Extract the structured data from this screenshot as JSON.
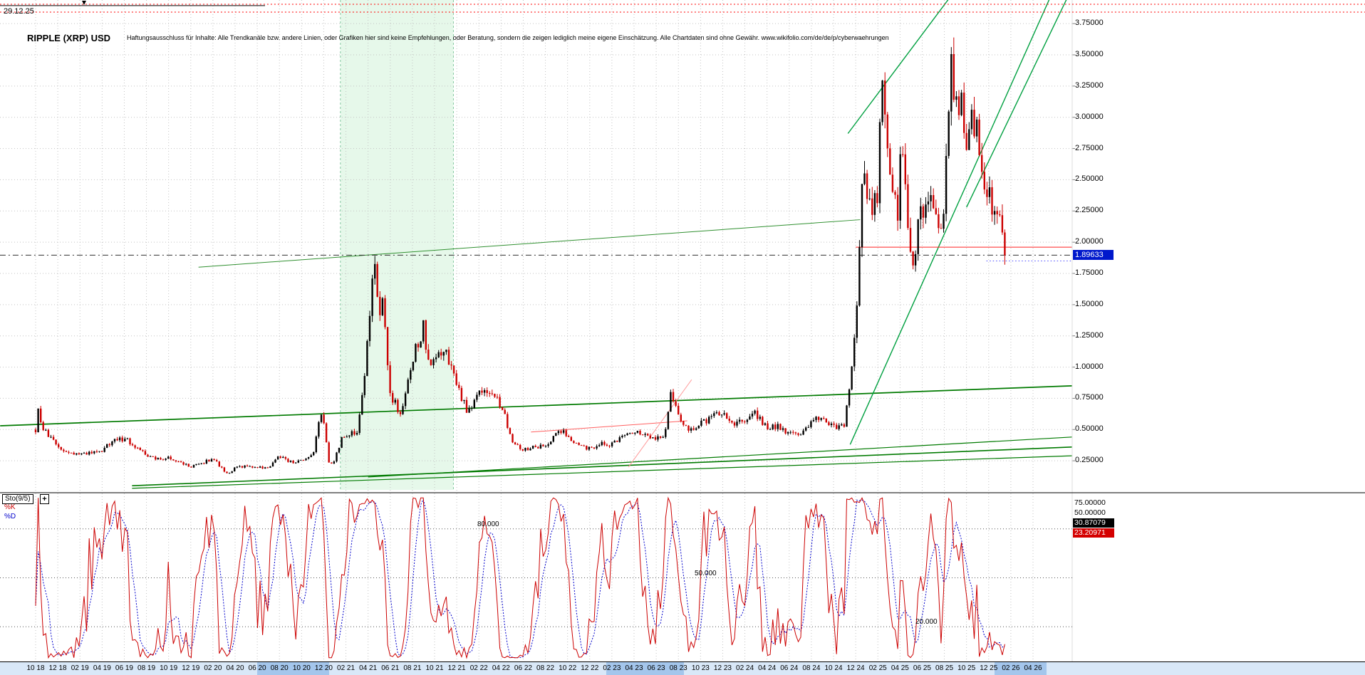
{
  "header": {
    "date_label": "29.12.25",
    "title": "RIPPLE (XRP) USD",
    "disclaimer": "Haftungsausschluss für Inhalte: Alle Trendkanäle bzw. andere Linien, oder Grafiken hier sind keine Empfehlungen, oder Beratung, sondern die zeigen lediglich meine eigene Einschätzung. Alle Chartdaten sind ohne Gewähr.   www.wikifolio.com/de/de/p/cyberwaehrungen"
  },
  "colors": {
    "up": "#000000",
    "down": "#cc0000",
    "k": "#cc0000",
    "d": "#0000cc",
    "grid": "#c3c3c3",
    "green": "#007a00",
    "band": "#d9e8f8",
    "band_highlight": "#a4c6ec",
    "tag_bg": "#0018cc",
    "k_box": "#000000",
    "d_box": "#d40000"
  },
  "chart_data": {
    "type": "candlestick",
    "title": "RIPPLE (XRP) USD",
    "interval": "weekly",
    "y_axis": {
      "unit": "USD",
      "tick_labels": [
        "3.75000",
        "3.50000",
        "3.25000",
        "3.00000",
        "2.75000",
        "2.50000",
        "2.25000",
        "2.00000",
        "1.75000",
        "1.50000",
        "1.25000",
        "1.00000",
        "0.75000",
        "0.50000",
        "0.25000"
      ],
      "tick_values": [
        3.75,
        3.5,
        3.25,
        3.0,
        2.75,
        2.5,
        2.25,
        2.0,
        1.75,
        1.5,
        1.25,
        1.0,
        0.75,
        0.5,
        0.25
      ]
    },
    "x_axis": {
      "start": "10/2018",
      "end": "04/2026",
      "tick_month_step": 2,
      "tick_labels": [
        "10 18",
        "12 18",
        "02 19",
        "04 19",
        "06 19",
        "08 19",
        "10 19",
        "12 19",
        "02 20",
        "04 20",
        "06 20",
        "08 20",
        "10 20",
        "12 20",
        "02 21",
        "04 21",
        "06 21",
        "08 21",
        "10 21",
        "12 21",
        "02 22",
        "04 22",
        "06 22",
        "08 22",
        "10 22",
        "12 22",
        "02 23",
        "04 23",
        "06 23",
        "08 23",
        "10 23",
        "12 23",
        "02 24",
        "04 24",
        "06 24",
        "08 24",
        "10 24",
        "12 24",
        "02 25",
        "04 25",
        "06 25",
        "08 25",
        "10 25",
        "12 25",
        "02 26",
        "04 26"
      ]
    },
    "last_price": 1.89633,
    "last_price_label": "1.89633",
    "price_path": [
      [
        0,
        0.5
      ],
      [
        0.25,
        0.65
      ],
      [
        0.6,
        0.53
      ],
      [
        1,
        0.46
      ],
      [
        2,
        0.36
      ],
      [
        3,
        0.31
      ],
      [
        4,
        0.3
      ],
      [
        5,
        0.31
      ],
      [
        6,
        0.33
      ],
      [
        7,
        0.41
      ],
      [
        8,
        0.43
      ],
      [
        9,
        0.37
      ],
      [
        10,
        0.29
      ],
      [
        11,
        0.26
      ],
      [
        12,
        0.28
      ],
      [
        13,
        0.24
      ],
      [
        14,
        0.2
      ],
      [
        15,
        0.23
      ],
      [
        16,
        0.27
      ],
      [
        17.3,
        0.14
      ],
      [
        18,
        0.19
      ],
      [
        19,
        0.21
      ],
      [
        20,
        0.2
      ],
      [
        21,
        0.19
      ],
      [
        22,
        0.29
      ],
      [
        23,
        0.24
      ],
      [
        24,
        0.25
      ],
      [
        25,
        0.29
      ],
      [
        25.7,
        0.62
      ],
      [
        26.1,
        0.5
      ],
      [
        26.5,
        0.22
      ],
      [
        27,
        0.26
      ],
      [
        27.6,
        0.42
      ],
      [
        28,
        0.45
      ],
      [
        29,
        0.48
      ],
      [
        29.7,
        0.95
      ],
      [
        30.5,
        1.86
      ],
      [
        31,
        1.38
      ],
      [
        31.3,
        1.55
      ],
      [
        31.8,
        0.92
      ],
      [
        32,
        0.78
      ],
      [
        33,
        0.62
      ],
      [
        34,
        1.05
      ],
      [
        35,
        1.32
      ],
      [
        35.5,
        0.98
      ],
      [
        36,
        1.05
      ],
      [
        37,
        1.14
      ],
      [
        38,
        0.86
      ],
      [
        39,
        0.64
      ],
      [
        40,
        0.78
      ],
      [
        41,
        0.82
      ],
      [
        42,
        0.7
      ],
      [
        43,
        0.42
      ],
      [
        44,
        0.34
      ],
      [
        45,
        0.36
      ],
      [
        46,
        0.37
      ],
      [
        47.3,
        0.5
      ],
      [
        48,
        0.46
      ],
      [
        49,
        0.37
      ],
      [
        50,
        0.35
      ],
      [
        51,
        0.39
      ],
      [
        52,
        0.38
      ],
      [
        53,
        0.44
      ],
      [
        54,
        0.5
      ],
      [
        55,
        0.46
      ],
      [
        56,
        0.44
      ],
      [
        56.8,
        0.47
      ],
      [
        57.3,
        0.82
      ],
      [
        57.7,
        0.7
      ],
      [
        58.3,
        0.52
      ],
      [
        59,
        0.51
      ],
      [
        60,
        0.54
      ],
      [
        61,
        0.61
      ],
      [
        62,
        0.62
      ],
      [
        63,
        0.56
      ],
      [
        64,
        0.55
      ],
      [
        65,
        0.63
      ],
      [
        66,
        0.52
      ],
      [
        67,
        0.53
      ],
      [
        68,
        0.47
      ],
      [
        69,
        0.44
      ],
      [
        70,
        0.57
      ],
      [
        71,
        0.58
      ],
      [
        72,
        0.53
      ],
      [
        73,
        0.52
      ],
      [
        73.8,
        1.15
      ],
      [
        74.2,
        1.55
      ],
      [
        74.7,
        2.72
      ],
      [
        75.1,
        2.35
      ],
      [
        75.5,
        2.15
      ],
      [
        76,
        2.45
      ],
      [
        76.4,
        3.3
      ],
      [
        76.7,
        3.05
      ],
      [
        77.2,
        2.55
      ],
      [
        77.8,
        2.08
      ],
      [
        78.1,
        2.88
      ],
      [
        78.5,
        2.35
      ],
      [
        79.3,
        1.72
      ],
      [
        79.6,
        2.12
      ],
      [
        80.2,
        2.3
      ],
      [
        80.6,
        2.42
      ],
      [
        81.2,
        2.12
      ],
      [
        81.7,
        2.18
      ],
      [
        82,
        2.35
      ],
      [
        82.6,
        3.52
      ],
      [
        83,
        3.05
      ],
      [
        83.5,
        3.12
      ],
      [
        84,
        2.88
      ],
      [
        84.5,
        3.02
      ],
      [
        85.1,
        2.92
      ],
      [
        85.4,
        2.42
      ],
      [
        86,
        2.48
      ],
      [
        86.6,
        2.18
      ],
      [
        87.1,
        2.12
      ],
      [
        87.4,
        1.98
      ],
      [
        87.6,
        1.9
      ]
    ],
    "shaded_region": {
      "from_month": 27.5,
      "to_month": 37.7,
      "fill": "rgba(140,225,160,0.22)",
      "edge": "rgba(0,140,60,0.45)"
    },
    "trend_lines": [
      [
        -3.2,
        0.53,
        93.5,
        0.85,
        "#007a00",
        1.7
      ],
      [
        8.7,
        0.05,
        93.5,
        0.36,
        "#007a00",
        1.6
      ],
      [
        8.7,
        0.03,
        93.5,
        0.29,
        "#007a00",
        1.2
      ],
      [
        30.0,
        0.12,
        93.5,
        0.44,
        "#007a00",
        1.2
      ],
      [
        14.7,
        1.8,
        74.4,
        2.18,
        "#309030",
        1
      ],
      [
        73.3,
        2.87,
        82.5,
        3.96,
        "#00a040",
        1.4
      ],
      [
        73.5,
        0.38,
        91.5,
        3.95,
        "#00a040",
        1.4
      ],
      [
        84.0,
        2.28,
        93.6,
        4.05,
        "#00a040",
        1.4
      ],
      [
        44.7,
        0.48,
        58.8,
        0.57,
        "#ff6060",
        1
      ],
      [
        53.5,
        0.2,
        59.2,
        0.9,
        "#ff9898",
        1
      ]
    ],
    "h_lines": [
      {
        "p": 3.905,
        "from": -3.22,
        "to": 120,
        "color": "#ff0000",
        "dash": "2,3",
        "w": 1
      },
      {
        "p": 3.842,
        "from": -3.22,
        "to": 120,
        "color": "#ff0000",
        "dash": "2,3",
        "w": 1
      },
      {
        "p": 3.894,
        "from": -3.22,
        "to": 20.7,
        "color": "#000000",
        "dash": null,
        "w": 1
      },
      {
        "p": 1.96,
        "from": 74.0,
        "to": 93.5,
        "color": "#ff2020",
        "dash": null,
        "w": 1
      },
      {
        "p": 1.89633,
        "from": -3.22,
        "to": 93.5,
        "color": "#303030",
        "dash": "8,4,2,4",
        "w": 1
      },
      {
        "p": 1.85,
        "from": 85.8,
        "to": 93.5,
        "color": "#4848ff",
        "dash": "1.5,3",
        "w": 1
      }
    ],
    "timeline_highlight_ranges": [
      [
        20,
        26.5
      ],
      [
        51.5,
        58.5
      ],
      [
        86.5,
        91.2
      ]
    ],
    "stochastic": {
      "name": "Sto(9/5)",
      "add_button": "+",
      "k_label": "%K",
      "d_label": "%D",
      "k_period": 9,
      "d_period": 5,
      "levels": [
        80,
        50,
        20
      ],
      "level_labels": [
        "80.000",
        "50.000",
        "20.000"
      ],
      "scale_labels": [
        "75.00000",
        "50.00000"
      ],
      "k_last": "30.87079",
      "d_last": "23.20971"
    }
  }
}
